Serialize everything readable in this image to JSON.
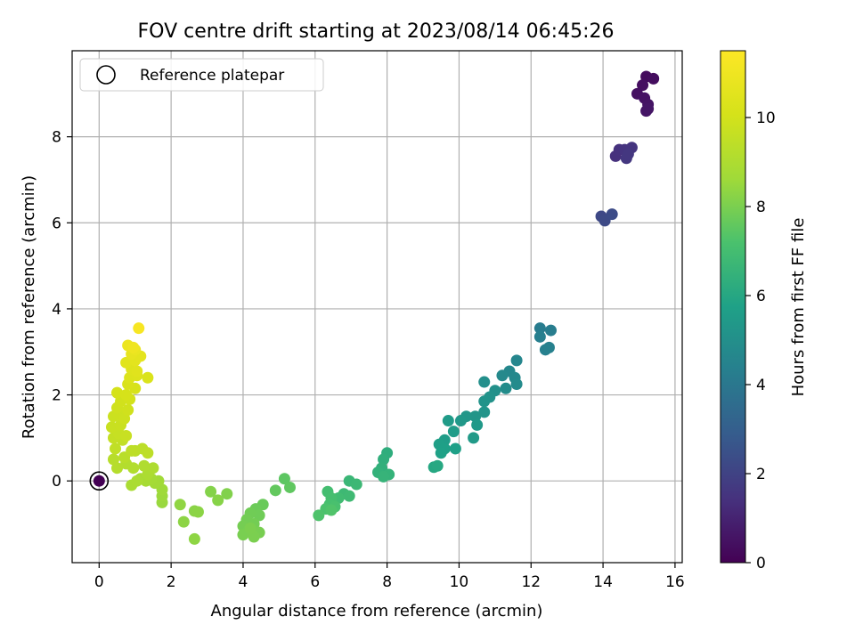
{
  "chart_data": {
    "type": "scatter",
    "title": "FOV centre drift starting at 2023/08/14 06:45:26",
    "xlabel": "Angular distance from reference (arcmin)",
    "ylabel": "Rotation from reference (arcmin)",
    "xlim": [
      -0.75,
      16.2
    ],
    "ylim": [
      -1.9,
      10
    ],
    "xticks": [
      0,
      2,
      4,
      6,
      8,
      10,
      12,
      14,
      16
    ],
    "yticks": [
      0,
      2,
      4,
      6,
      8
    ],
    "grid": true,
    "legend": {
      "location": "upper-left",
      "entries": [
        "Reference platepar"
      ]
    },
    "colorbar": {
      "label": "Hours from first FF file",
      "range": [
        0,
        11.5
      ],
      "ticks": [
        0,
        2,
        4,
        6,
        8,
        10
      ],
      "colormap": "viridis"
    },
    "reference_point": {
      "x": 0,
      "y": 0,
      "hours": 0,
      "label": "Reference platepar"
    },
    "series": [
      {
        "points": [
          {
            "x": 15.2,
            "y": 9.4,
            "h": 0.3
          },
          {
            "x": 15.4,
            "y": 9.35,
            "h": 0.35
          },
          {
            "x": 15.1,
            "y": 9.2,
            "h": 0.4
          },
          {
            "x": 14.95,
            "y": 9.0,
            "h": 0.45
          },
          {
            "x": 15.15,
            "y": 8.9,
            "h": 0.5
          },
          {
            "x": 15.25,
            "y": 8.75,
            "h": 0.55
          },
          {
            "x": 15.2,
            "y": 8.6,
            "h": 0.6
          },
          {
            "x": 15.25,
            "y": 8.65,
            "h": 0.62
          },
          {
            "x": 14.35,
            "y": 7.55,
            "h": 1.4
          },
          {
            "x": 14.45,
            "y": 7.7,
            "h": 1.45
          },
          {
            "x": 14.6,
            "y": 7.7,
            "h": 1.5
          },
          {
            "x": 14.8,
            "y": 7.75,
            "h": 1.55
          },
          {
            "x": 14.65,
            "y": 7.5,
            "h": 1.6
          },
          {
            "x": 14.7,
            "y": 7.6,
            "h": 1.62
          },
          {
            "x": 13.95,
            "y": 6.15,
            "h": 2.2
          },
          {
            "x": 14.05,
            "y": 6.05,
            "h": 2.25
          },
          {
            "x": 14.25,
            "y": 6.2,
            "h": 2.3
          },
          {
            "x": 12.25,
            "y": 3.55,
            "h": 4.2
          },
          {
            "x": 12.55,
            "y": 3.5,
            "h": 4.25
          },
          {
            "x": 12.25,
            "y": 3.35,
            "h": 4.3
          },
          {
            "x": 12.4,
            "y": 3.05,
            "h": 4.35
          },
          {
            "x": 12.5,
            "y": 3.1,
            "h": 4.4
          },
          {
            "x": 11.6,
            "y": 2.8,
            "h": 4.6
          },
          {
            "x": 11.4,
            "y": 2.55,
            "h": 4.65
          },
          {
            "x": 11.55,
            "y": 2.4,
            "h": 4.7
          },
          {
            "x": 11.2,
            "y": 2.45,
            "h": 4.75
          },
          {
            "x": 11.6,
            "y": 2.25,
            "h": 4.8
          },
          {
            "x": 11.3,
            "y": 2.15,
            "h": 4.85
          },
          {
            "x": 10.7,
            "y": 2.3,
            "h": 5.0
          },
          {
            "x": 11.0,
            "y": 2.1,
            "h": 5.05
          },
          {
            "x": 10.85,
            "y": 1.95,
            "h": 5.1
          },
          {
            "x": 10.7,
            "y": 1.85,
            "h": 5.15
          },
          {
            "x": 10.7,
            "y": 1.6,
            "h": 5.2
          },
          {
            "x": 10.45,
            "y": 1.5,
            "h": 5.25
          },
          {
            "x": 10.2,
            "y": 1.5,
            "h": 5.3
          },
          {
            "x": 10.05,
            "y": 1.4,
            "h": 5.35
          },
          {
            "x": 10.5,
            "y": 1.3,
            "h": 5.4
          },
          {
            "x": 10.4,
            "y": 1.0,
            "h": 5.45
          },
          {
            "x": 9.7,
            "y": 1.4,
            "h": 5.5
          },
          {
            "x": 9.85,
            "y": 1.15,
            "h": 5.55
          },
          {
            "x": 9.6,
            "y": 0.95,
            "h": 5.6
          },
          {
            "x": 9.45,
            "y": 0.85,
            "h": 5.65
          },
          {
            "x": 9.6,
            "y": 0.75,
            "h": 5.7
          },
          {
            "x": 9.9,
            "y": 0.75,
            "h": 5.72
          },
          {
            "x": 9.5,
            "y": 0.65,
            "h": 5.75
          },
          {
            "x": 9.3,
            "y": 0.32,
            "h": 6.0
          },
          {
            "x": 9.4,
            "y": 0.35,
            "h": 6.05
          },
          {
            "x": 8.0,
            "y": 0.65,
            "h": 6.3
          },
          {
            "x": 7.9,
            "y": 0.5,
            "h": 6.35
          },
          {
            "x": 7.85,
            "y": 0.3,
            "h": 6.4
          },
          {
            "x": 7.75,
            "y": 0.2,
            "h": 6.45
          },
          {
            "x": 8.05,
            "y": 0.15,
            "h": 6.5
          },
          {
            "x": 7.9,
            "y": 0.1,
            "h": 6.55
          },
          {
            "x": 6.95,
            "y": 0.0,
            "h": 6.7
          },
          {
            "x": 7.15,
            "y": -0.08,
            "h": 6.75
          },
          {
            "x": 6.8,
            "y": -0.3,
            "h": 6.8
          },
          {
            "x": 6.95,
            "y": -0.35,
            "h": 6.85
          },
          {
            "x": 6.65,
            "y": -0.4,
            "h": 6.9
          },
          {
            "x": 6.35,
            "y": -0.25,
            "h": 7.0
          },
          {
            "x": 6.45,
            "y": -0.4,
            "h": 7.05
          },
          {
            "x": 6.4,
            "y": -0.55,
            "h": 7.1
          },
          {
            "x": 6.55,
            "y": -0.6,
            "h": 7.15
          },
          {
            "x": 6.3,
            "y": -0.65,
            "h": 7.2
          },
          {
            "x": 6.1,
            "y": -0.8,
            "h": 7.25
          },
          {
            "x": 6.45,
            "y": -0.68,
            "h": 7.28
          },
          {
            "x": 5.15,
            "y": 0.05,
            "h": 7.5
          },
          {
            "x": 5.3,
            "y": -0.15,
            "h": 7.55
          },
          {
            "x": 4.9,
            "y": -0.22,
            "h": 7.6
          },
          {
            "x": 4.55,
            "y": -0.55,
            "h": 7.7
          },
          {
            "x": 4.35,
            "y": -0.65,
            "h": 7.75
          },
          {
            "x": 4.45,
            "y": -0.8,
            "h": 7.8
          },
          {
            "x": 4.2,
            "y": -0.75,
            "h": 7.82
          },
          {
            "x": 4.1,
            "y": -0.9,
            "h": 7.85
          },
          {
            "x": 4.3,
            "y": -1.0,
            "h": 7.88
          },
          {
            "x": 4.0,
            "y": -1.05,
            "h": 7.9
          },
          {
            "x": 4.15,
            "y": -1.15,
            "h": 7.92
          },
          {
            "x": 4.45,
            "y": -1.2,
            "h": 7.95
          },
          {
            "x": 4.0,
            "y": -1.25,
            "h": 7.97
          },
          {
            "x": 4.3,
            "y": -1.3,
            "h": 8.0
          },
          {
            "x": 4.2,
            "y": -1.1,
            "h": 8.02
          },
          {
            "x": 3.55,
            "y": -0.3,
            "h": 8.1
          },
          {
            "x": 3.1,
            "y": -0.25,
            "h": 8.15
          },
          {
            "x": 3.3,
            "y": -0.45,
            "h": 8.2
          },
          {
            "x": 2.65,
            "y": -0.7,
            "h": 8.25
          },
          {
            "x": 2.75,
            "y": -0.72,
            "h": 8.28
          },
          {
            "x": 2.35,
            "y": -0.95,
            "h": 8.3
          },
          {
            "x": 2.65,
            "y": -1.35,
            "h": 8.32
          },
          {
            "x": 2.25,
            "y": -0.55,
            "h": 8.35
          },
          {
            "x": 1.75,
            "y": -0.5,
            "h": 8.5
          },
          {
            "x": 1.75,
            "y": -0.35,
            "h": 8.55
          },
          {
            "x": 1.75,
            "y": -0.2,
            "h": 8.6
          },
          {
            "x": 1.65,
            "y": 0.0,
            "h": 8.65
          },
          {
            "x": 1.55,
            "y": -0.05,
            "h": 8.7
          },
          {
            "x": 1.45,
            "y": 0.05,
            "h": 8.75
          },
          {
            "x": 1.3,
            "y": 0.0,
            "h": 8.8
          },
          {
            "x": 1.15,
            "y": 0.05,
            "h": 8.85
          },
          {
            "x": 0.9,
            "y": -0.1,
            "h": 8.9
          },
          {
            "x": 1.05,
            "y": 0.0,
            "h": 8.92
          },
          {
            "x": 1.35,
            "y": 0.15,
            "h": 8.95
          },
          {
            "x": 1.5,
            "y": 0.3,
            "h": 9.0
          },
          {
            "x": 1.25,
            "y": 0.35,
            "h": 9.05
          },
          {
            "x": 0.95,
            "y": 0.3,
            "h": 9.1
          },
          {
            "x": 0.75,
            "y": 0.4,
            "h": 9.15
          },
          {
            "x": 0.5,
            "y": 0.3,
            "h": 9.2
          },
          {
            "x": 0.4,
            "y": 0.5,
            "h": 9.25
          },
          {
            "x": 0.7,
            "y": 0.55,
            "h": 9.3
          },
          {
            "x": 1.0,
            "y": 0.7,
            "h": 9.35
          },
          {
            "x": 1.2,
            "y": 0.75,
            "h": 9.38
          },
          {
            "x": 1.35,
            "y": 0.65,
            "h": 9.4
          },
          {
            "x": 0.9,
            "y": 0.7,
            "h": 9.42
          },
          {
            "x": 0.45,
            "y": 0.75,
            "h": 9.5
          },
          {
            "x": 0.65,
            "y": 0.95,
            "h": 9.55
          },
          {
            "x": 0.4,
            "y": 1.0,
            "h": 9.6
          },
          {
            "x": 0.55,
            "y": 1.1,
            "h": 9.65
          },
          {
            "x": 0.75,
            "y": 1.05,
            "h": 9.7
          },
          {
            "x": 0.35,
            "y": 1.25,
            "h": 9.72
          },
          {
            "x": 0.6,
            "y": 1.3,
            "h": 9.75
          },
          {
            "x": 0.4,
            "y": 1.5,
            "h": 9.8
          },
          {
            "x": 0.55,
            "y": 1.55,
            "h": 9.82
          },
          {
            "x": 0.7,
            "y": 1.45,
            "h": 9.85
          },
          {
            "x": 0.5,
            "y": 1.7,
            "h": 9.9
          },
          {
            "x": 0.8,
            "y": 1.65,
            "h": 9.92
          },
          {
            "x": 0.6,
            "y": 1.85,
            "h": 9.95
          },
          {
            "x": 0.85,
            "y": 1.9,
            "h": 10.0
          },
          {
            "x": 0.5,
            "y": 2.05,
            "h": 10.05
          },
          {
            "x": 0.75,
            "y": 2.0,
            "h": 10.1
          },
          {
            "x": 1.0,
            "y": 2.15,
            "h": 10.15
          },
          {
            "x": 0.8,
            "y": 2.25,
            "h": 10.2
          },
          {
            "x": 1.35,
            "y": 2.4,
            "h": 10.25
          },
          {
            "x": 0.85,
            "y": 2.4,
            "h": 10.3
          },
          {
            "x": 1.05,
            "y": 2.45,
            "h": 10.35
          },
          {
            "x": 0.9,
            "y": 2.6,
            "h": 10.4
          },
          {
            "x": 1.05,
            "y": 2.55,
            "h": 10.45
          },
          {
            "x": 0.75,
            "y": 2.75,
            "h": 10.5
          },
          {
            "x": 1.0,
            "y": 2.8,
            "h": 10.55
          },
          {
            "x": 1.15,
            "y": 2.9,
            "h": 10.6
          },
          {
            "x": 0.9,
            "y": 2.95,
            "h": 10.7
          },
          {
            "x": 1.0,
            "y": 3.05,
            "h": 10.8
          },
          {
            "x": 0.8,
            "y": 3.15,
            "h": 10.9
          },
          {
            "x": 0.95,
            "y": 3.1,
            "h": 11.0
          },
          {
            "x": 1.1,
            "y": 3.55,
            "h": 11.3
          }
        ]
      }
    ]
  }
}
